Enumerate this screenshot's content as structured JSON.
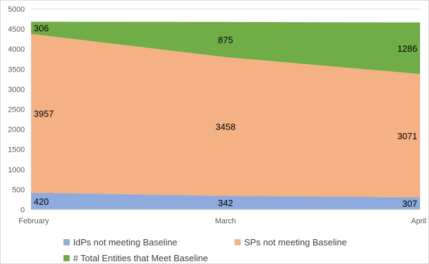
{
  "chart_data": {
    "type": "area",
    "stacked": true,
    "categories": [
      "February",
      "March",
      "April"
    ],
    "series": [
      {
        "name": "IdPs not meeting Baseline",
        "values": [
          420,
          342,
          307
        ],
        "color": "#8faadc"
      },
      {
        "name": "SPs not meeting Baseline",
        "values": [
          3957,
          3458,
          3071
        ],
        "color": "#f4b183"
      },
      {
        "name": "# Total Entities that Meet Baseline",
        "values": [
          306,
          875,
          1286
        ],
        "color": "#70ad47"
      }
    ],
    "ylim": [
      0,
      5000
    ],
    "yticks": [
      0,
      500,
      1000,
      1500,
      2000,
      2500,
      3000,
      3500,
      4000,
      4500,
      5000
    ],
    "grid": true,
    "legend_position": "bottom"
  }
}
